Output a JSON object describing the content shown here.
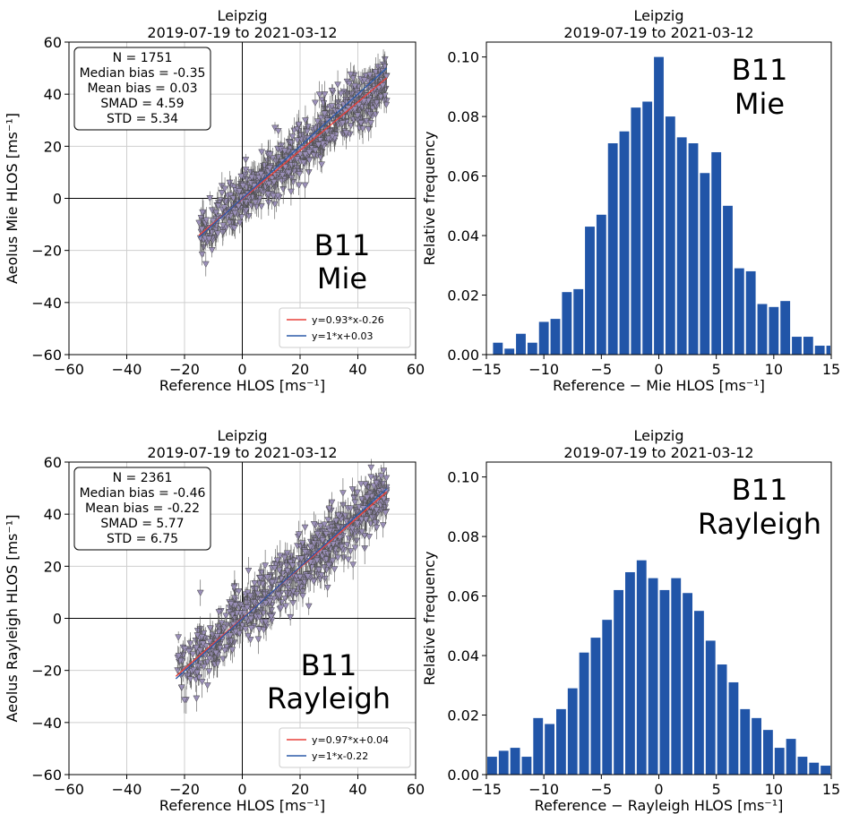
{
  "chart_data": [
    {
      "type": "scatter",
      "title": [
        "Leipzig",
        "2019-07-19 to 2021-03-12"
      ],
      "xlabel": "Reference HLOS [ms⁻¹]",
      "ylabel": "Aeolus Mie HLOS [ms⁻¹]",
      "xlim": [
        -60,
        60
      ],
      "ylim": [
        -60,
        60
      ],
      "xticks": [
        -60,
        -40,
        -20,
        0,
        20,
        40,
        60
      ],
      "yticks": [
        -60,
        -40,
        -20,
        0,
        20,
        40,
        60
      ],
      "grid": true,
      "stats": [
        "N = 1751",
        "Median bias = -0.35",
        "Mean bias = 0.03",
        "SMAD = 4.59",
        "STD = 5.34"
      ],
      "annotation": [
        "B11",
        "Mie"
      ],
      "fits": [
        {
          "name": "y=0.93*x-0.26",
          "slope": 0.93,
          "intercept": -0.26,
          "color": "#e8413a"
        },
        {
          "name": "y=1*x+0.03",
          "slope": 1.0,
          "intercept": 0.03,
          "color": "#2c5aa8"
        }
      ],
      "x_range": [
        -15,
        50
      ],
      "spread": 5.34,
      "n_points": 1751,
      "point_color": "#9a8fb8",
      "legend": "bottom-right"
    },
    {
      "type": "bar",
      "title": [
        "Leipzig",
        "2019-07-19 to 2021-03-12"
      ],
      "xlabel": "Reference − Mie HLOS [ms⁻¹]",
      "ylabel": "Relative frequency",
      "xlim": [
        -15,
        15
      ],
      "ylim": [
        0,
        0.105
      ],
      "xticks": [
        -15,
        -10,
        -5,
        0,
        5,
        10,
        15
      ],
      "yticks": [
        0.0,
        0.02,
        0.04,
        0.06,
        0.08,
        0.1
      ],
      "ytick_labels": [
        "0.00",
        "0.02",
        "0.04",
        "0.06",
        "0.08",
        "0.10"
      ],
      "bin_start": -14.5,
      "bin_width": 1,
      "values": [
        0.004,
        0.002,
        0.007,
        0.004,
        0.011,
        0.012,
        0.021,
        0.022,
        0.043,
        0.047,
        0.071,
        0.075,
        0.083,
        0.085,
        0.1,
        0.08,
        0.073,
        0.071,
        0.061,
        0.068,
        0.05,
        0.029,
        0.028,
        0.017,
        0.016,
        0.018,
        0.006,
        0.006,
        0.003,
        0.003,
        0.001
      ],
      "annotation": [
        "B11",
        "Mie"
      ],
      "bar_color": "#2155a8"
    },
    {
      "type": "scatter",
      "title": [
        "Leipzig",
        "2019-07-19 to 2021-03-12"
      ],
      "xlabel": "Reference HLOS [ms⁻¹]",
      "ylabel": "Aeolus Rayleigh HLOS [ms⁻¹]",
      "xlim": [
        -60,
        60
      ],
      "ylim": [
        -60,
        60
      ],
      "xticks": [
        -60,
        -40,
        -20,
        0,
        20,
        40,
        60
      ],
      "yticks": [
        -60,
        -40,
        -20,
        0,
        20,
        40,
        60
      ],
      "grid": true,
      "stats": [
        "N = 2361",
        "Median bias = -0.46",
        "Mean bias = -0.22",
        "SMAD = 5.77",
        "STD = 6.75"
      ],
      "annotation": [
        "B11",
        "Rayleigh"
      ],
      "fits": [
        {
          "name": "y=0.97*x+0.04",
          "slope": 0.97,
          "intercept": 0.04,
          "color": "#e8413a"
        },
        {
          "name": "y=1*x-0.22",
          "slope": 1.0,
          "intercept": -0.22,
          "color": "#2c5aa8"
        }
      ],
      "x_range": [
        -23,
        50
      ],
      "spread": 6.75,
      "n_points": 2361,
      "point_color": "#9a8fb8",
      "legend": "bottom-right"
    },
    {
      "type": "bar",
      "title": [
        "Leipzig",
        "2019-07-19 to 2021-03-12"
      ],
      "xlabel": "Reference − Rayleigh HLOS [ms⁻¹]",
      "ylabel": "Relative frequency",
      "xlim": [
        -15,
        15
      ],
      "ylim": [
        0,
        0.105
      ],
      "xticks": [
        -15,
        -10,
        -5,
        0,
        5,
        10,
        15
      ],
      "yticks": [
        0.0,
        0.02,
        0.04,
        0.06,
        0.08,
        0.1
      ],
      "ytick_labels": [
        "0.00",
        "0.02",
        "0.04",
        "0.06",
        "0.08",
        "0.10"
      ],
      "bin_start": -15,
      "bin_width": 1,
      "values": [
        0.006,
        0.008,
        0.009,
        0.006,
        0.019,
        0.017,
        0.022,
        0.029,
        0.041,
        0.046,
        0.052,
        0.062,
        0.068,
        0.072,
        0.066,
        0.062,
        0.066,
        0.061,
        0.055,
        0.045,
        0.037,
        0.031,
        0.022,
        0.019,
        0.015,
        0.009,
        0.012,
        0.006,
        0.004,
        0.003
      ],
      "annotation": [
        "B11",
        "Rayleigh"
      ],
      "bar_color": "#2155a8"
    }
  ]
}
